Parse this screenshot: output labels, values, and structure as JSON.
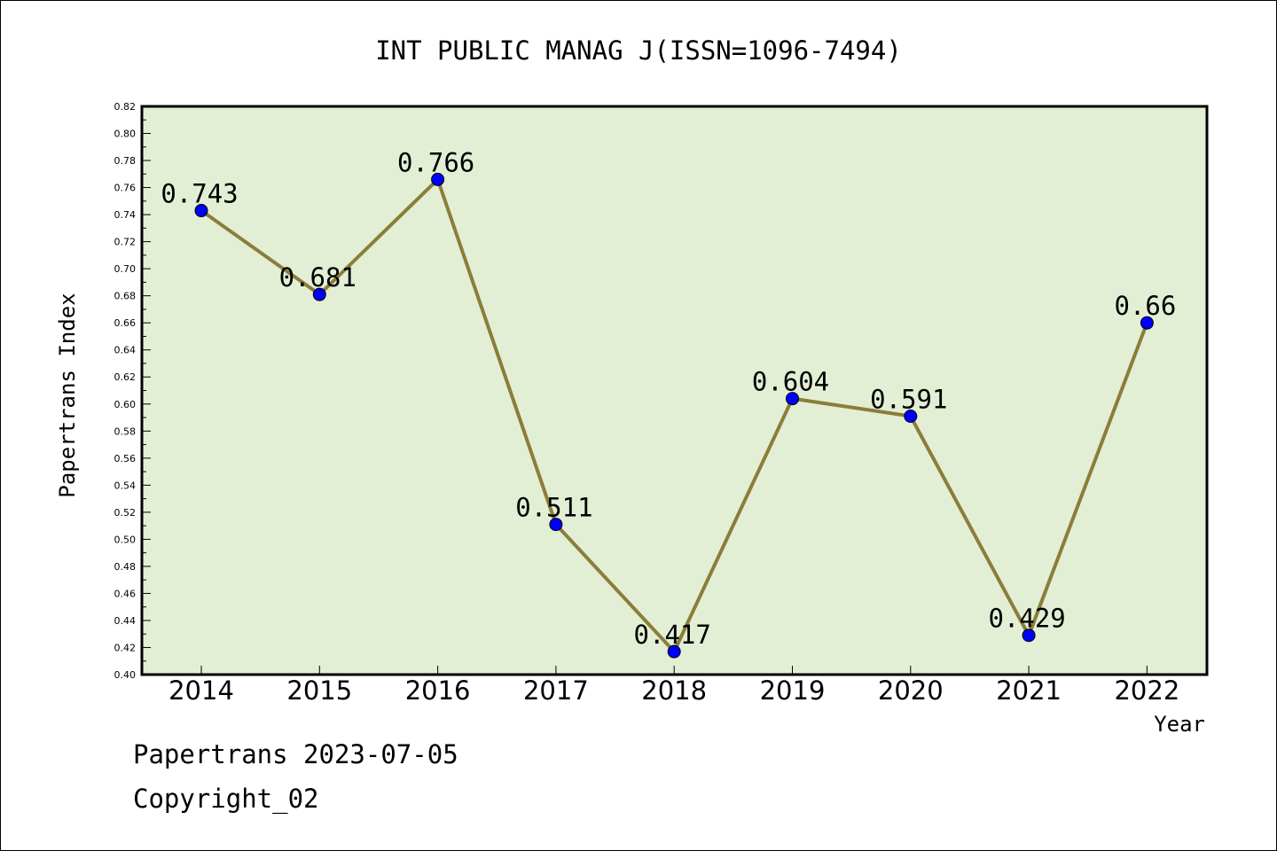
{
  "chart_data": {
    "type": "line",
    "title": "INT PUBLIC MANAG J(ISSN=1096-7494)",
    "xlabel": "Year",
    "ylabel": "Papertrans Index",
    "categories": [
      "2014",
      "2015",
      "2016",
      "2017",
      "2018",
      "2019",
      "2020",
      "2021",
      "2022"
    ],
    "values": [
      0.743,
      0.681,
      0.766,
      0.511,
      0.417,
      0.604,
      0.591,
      0.429,
      0.66
    ],
    "data_labels": [
      "0.743",
      "0.681",
      "0.766",
      "0.511",
      "0.417",
      "0.604",
      "0.591",
      "0.429",
      "0.66"
    ],
    "ylim": [
      0.4,
      0.82
    ],
    "yticks": [
      "0.40",
      "0.42",
      "0.44",
      "0.46",
      "0.48",
      "0.50",
      "0.52",
      "0.54",
      "0.56",
      "0.58",
      "0.60",
      "0.62",
      "0.64",
      "0.66",
      "0.68",
      "0.70",
      "0.72",
      "0.74",
      "0.76",
      "0.78",
      "0.80",
      "0.82"
    ],
    "grid": false,
    "colors": {
      "plot_background": "#e2efd5",
      "line": "#8b7d3a",
      "marker": "#0000ff"
    }
  },
  "footer": {
    "date_line": "Papertrans 2023-07-05",
    "copyright": "Copyright_02"
  }
}
